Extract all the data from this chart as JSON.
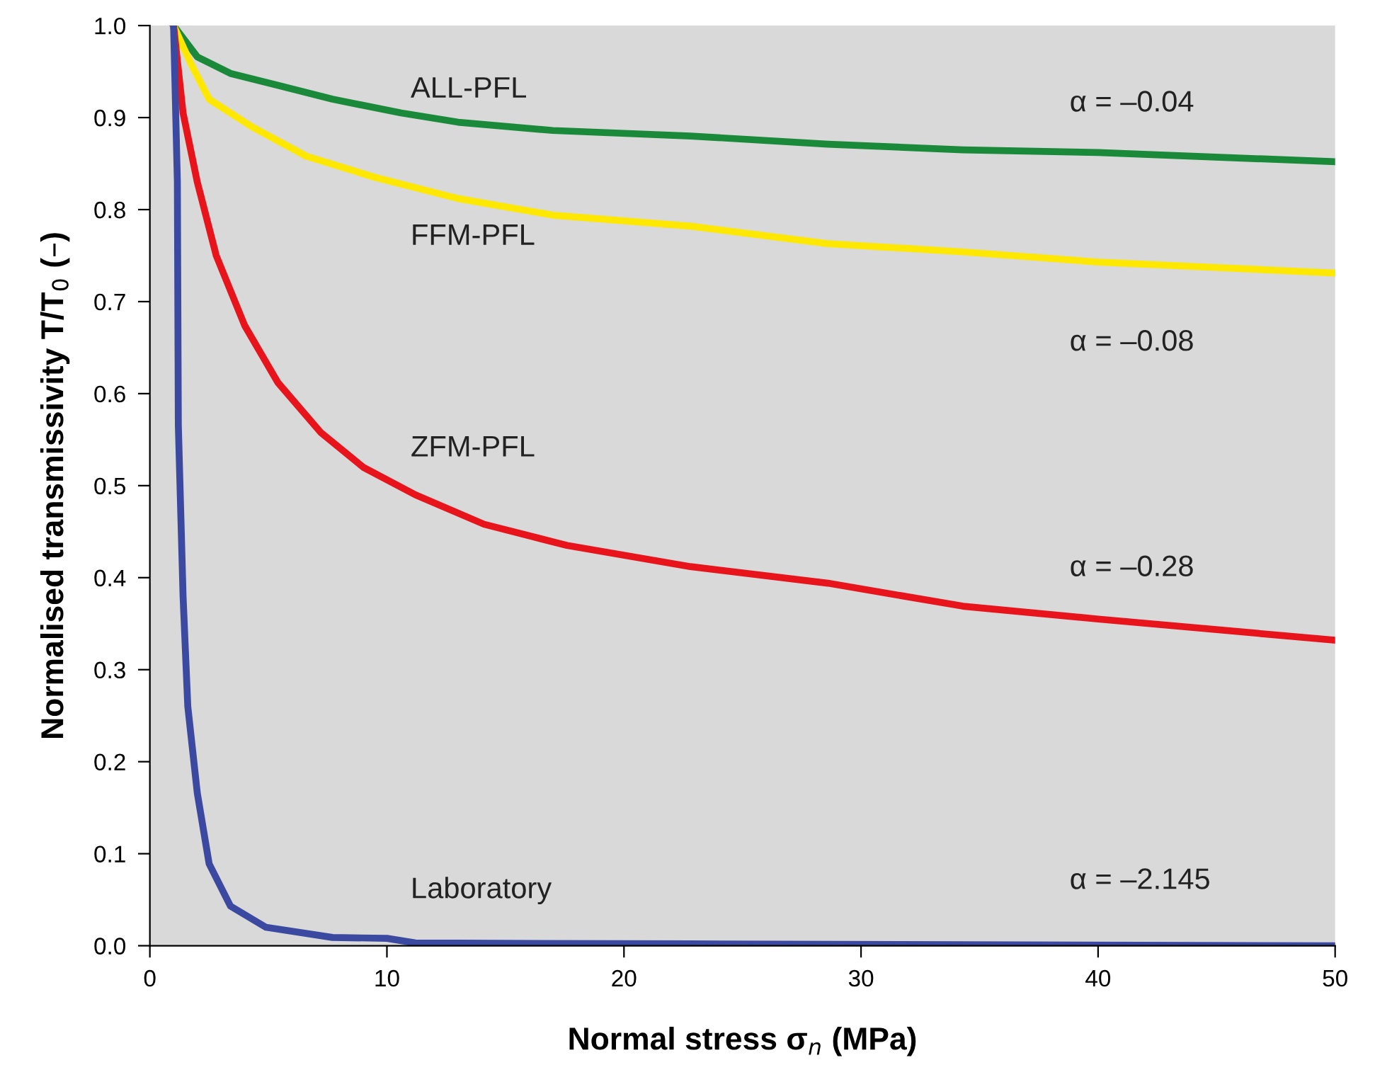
{
  "chart_data": {
    "type": "line",
    "xlabel": "Normal stress σ$_{n}$ (MPa)",
    "ylabel": "Normalised transmissivity T/T$_{0}$ (–)",
    "xlim": [
      0,
      50
    ],
    "xticks": [
      0,
      10,
      20,
      30,
      40,
      50
    ],
    "ylim": [
      0,
      1
    ],
    "yticks": [
      {
        "value": 0,
        "label": "0.0"
      },
      0.1,
      0.2,
      0.3,
      0.4,
      0.5,
      0.6,
      0.7,
      0.8,
      0.9,
      {
        "value": 1,
        "label": "1.0"
      }
    ],
    "grid": false,
    "legend": false,
    "marker": "none",
    "line_style": "solid",
    "series": [
      {
        "name": "ALL-PFL",
        "color": "#1a8a3a",
        "x": [
          1,
          2,
          3.4,
          5.4,
          7.7,
          10.6,
          13,
          17,
          22.8,
          28.6,
          34.3,
          40,
          50
        ],
        "values": [
          1.0,
          0.966,
          0.948,
          0.935,
          0.92,
          0.905,
          0.895,
          0.886,
          0.88,
          0.871,
          0.865,
          0.862,
          0.852
        ]
      },
      {
        "name": "FFM-PFL",
        "color": "#ffe800",
        "x": [
          1,
          1.7,
          2.5,
          4.3,
          6.6,
          9.5,
          13,
          17,
          22.8,
          28.6,
          34.3,
          40,
          50
        ],
        "values": [
          1.0,
          0.96,
          0.92,
          0.89,
          0.858,
          0.835,
          0.812,
          0.794,
          0.782,
          0.763,
          0.754,
          0.743,
          0.731
        ]
      },
      {
        "name": "ZFM-PFL",
        "color": "#e8141c",
        "x": [
          1,
          1.4,
          2,
          2.8,
          4,
          5.4,
          7.2,
          9,
          11.2,
          14.1,
          17.6,
          22.8,
          28.6,
          34.3,
          40,
          50
        ],
        "values": [
          1.0,
          0.905,
          0.83,
          0.75,
          0.674,
          0.612,
          0.558,
          0.52,
          0.49,
          0.458,
          0.435,
          0.412,
          0.394,
          0.369,
          0.355,
          0.332
        ]
      },
      {
        "name": "Laboratory",
        "color": "#3b4aa0",
        "x": [
          1,
          1.16,
          1.2,
          1.4,
          1.6,
          2,
          2.5,
          3.4,
          4.9,
          7.7,
          10,
          11.2,
          22.8,
          50
        ],
        "values": [
          1.0,
          0.83,
          0.566,
          0.38,
          0.26,
          0.166,
          0.089,
          0.043,
          0.02,
          0.009,
          0.008,
          0.003,
          0.002,
          0.0
        ]
      }
    ],
    "annotations": [
      "α = –0.04",
      "α = –0.08",
      "α = –0.28",
      "α = –2.145"
    ]
  }
}
